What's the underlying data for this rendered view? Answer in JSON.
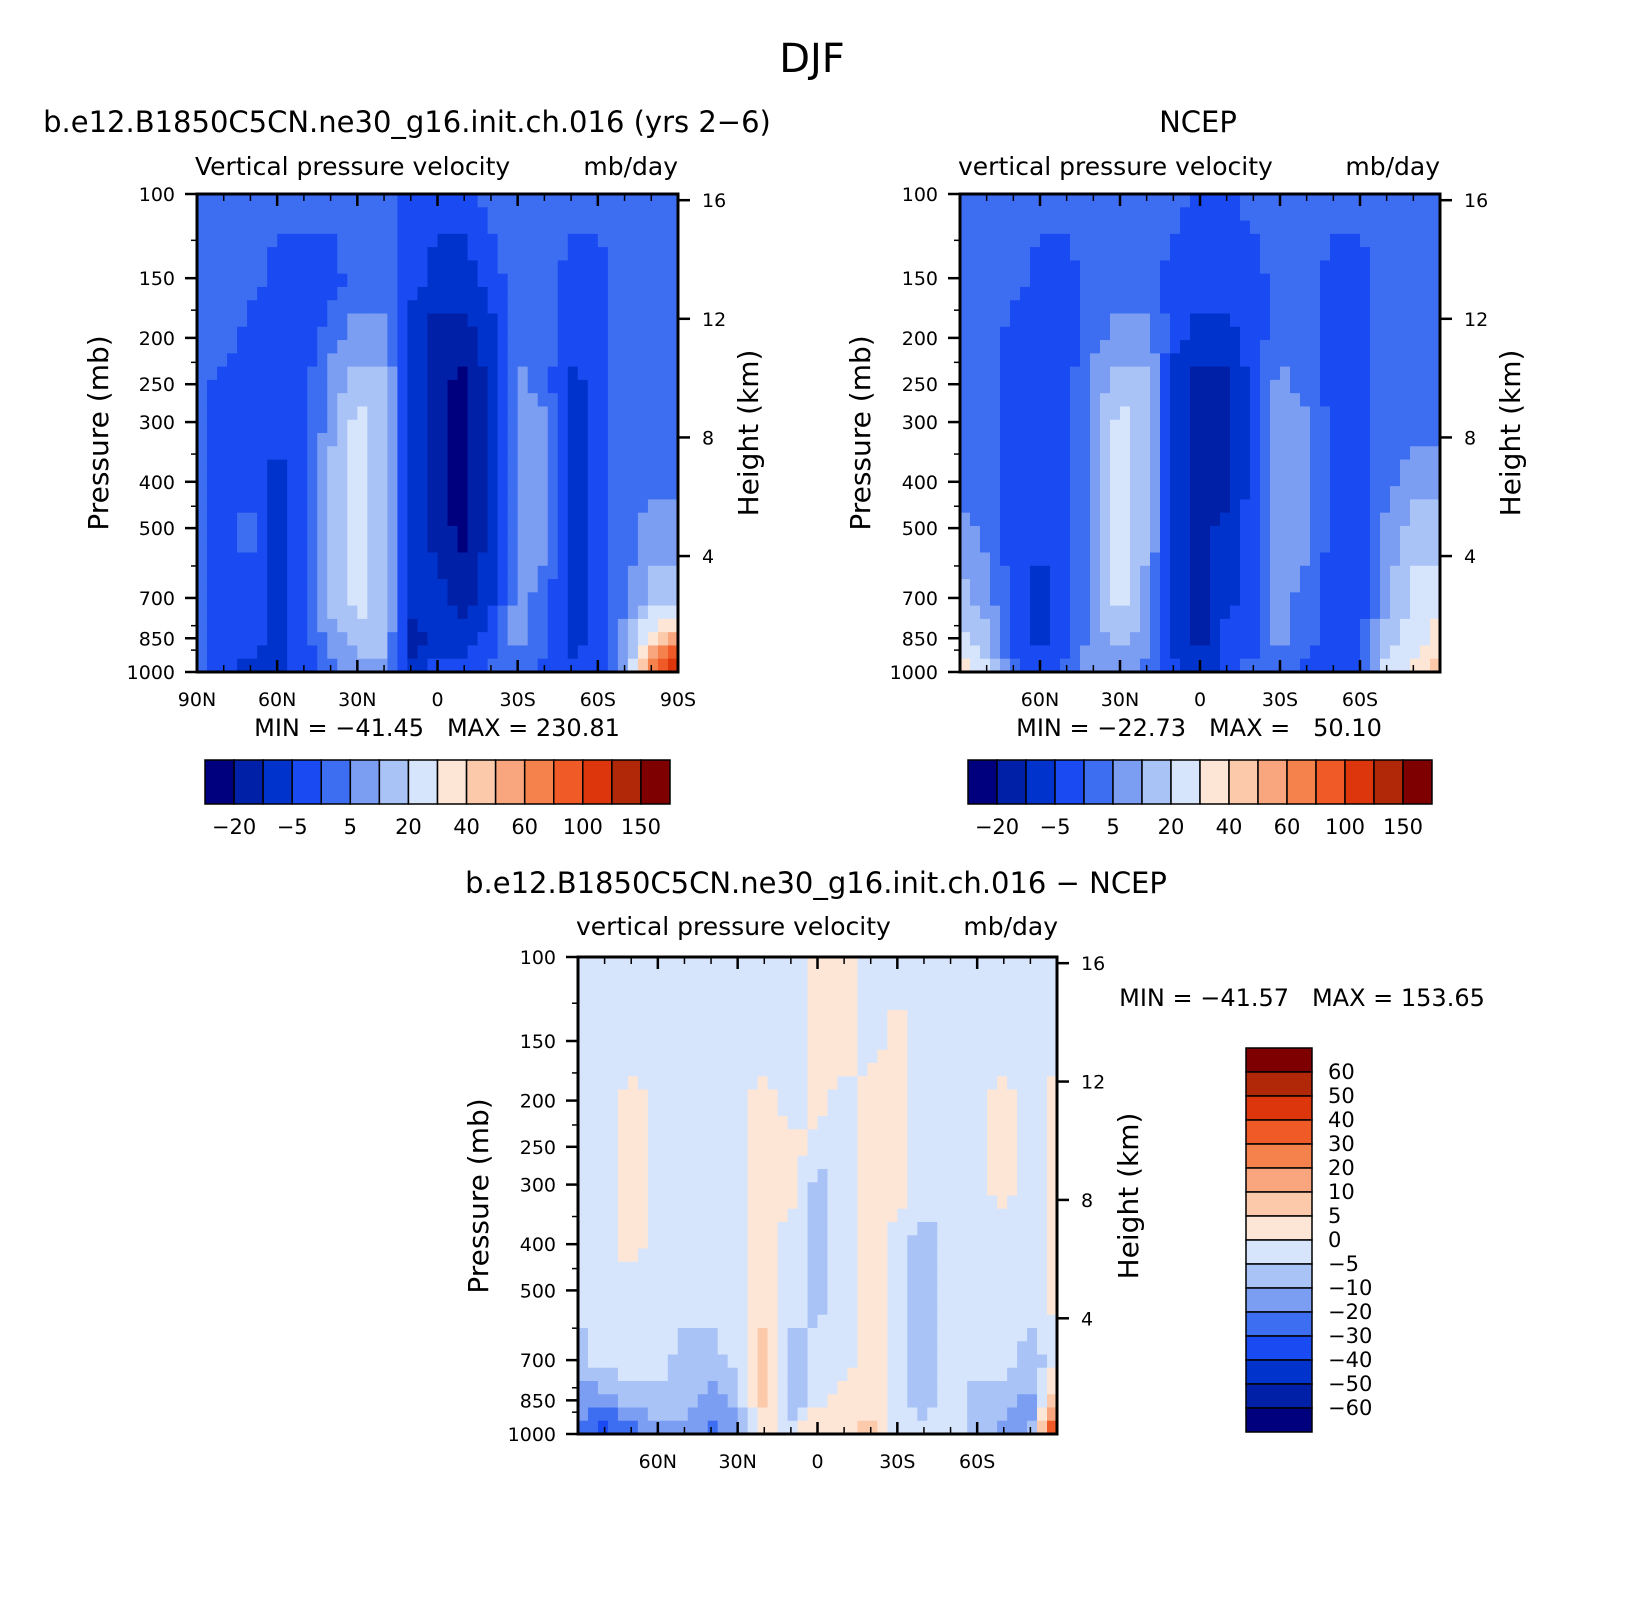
{
  "figure": {
    "title": "DJF"
  },
  "colors": {
    "model_obs_palette": [
      "#00007f",
      "#0020a8",
      "#0033cc",
      "#1a4af2",
      "#3d6ef2",
      "#7b9ef2",
      "#aac3f7",
      "#d6e5fb",
      "#fde6d6",
      "#fcc9aa",
      "#f9a57d",
      "#f5814d",
      "#f05a26",
      "#de360c",
      "#b02808",
      "#7f0000"
    ],
    "diff_palette": [
      "#00007f",
      "#0020a8",
      "#0033cc",
      "#1a4af2",
      "#3d6ef2",
      "#7b9ef2",
      "#aac3f7",
      "#d6e5fb",
      "#fde6d6",
      "#fcc9aa",
      "#f9a57d",
      "#f5814d",
      "#f05a26",
      "#de360c",
      "#b02808",
      "#7f0000"
    ]
  },
  "chart_data": [
    {
      "type": "heatmap",
      "id": "model",
      "title": "b.e12.B1850C5CN.ne30_g16.init.ch.016 (yrs 2−6)",
      "subtitle_left": "Vertical pressure velocity",
      "subtitle_right": "mb/day",
      "ylabel": "Pressure (mb)",
      "ylabel_right": "Height (km)",
      "y_ticks": [
        "100",
        "150",
        "200",
        "250",
        "300",
        "400",
        "500",
        "700",
        "850",
        "1000"
      ],
      "y_tick_values": [
        100,
        150,
        200,
        250,
        300,
        400,
        500,
        700,
        850,
        1000
      ],
      "y_right_ticks": [
        "16",
        "12",
        "8",
        "4"
      ],
      "x_ticks": [
        "90N",
        "60N",
        "30N",
        "0",
        "30S",
        "60S",
        "90S"
      ],
      "x_tick_values": [
        90,
        60,
        30,
        0,
        -30,
        -60,
        -90
      ],
      "xlim": [
        90,
        -90
      ],
      "ylim": [
        1000,
        100
      ],
      "y_scale": "log",
      "stats": "MIN = −41.45   MAX = 230.81",
      "min": -41.45,
      "max": 230.81,
      "colorbar_labels": [
        "−20",
        "−5",
        "5",
        "20",
        "40",
        "60",
        "100",
        "150"
      ],
      "field_columns": [
        {
          "lat": 90,
          "levels": [
            4,
            4,
            4,
            4,
            4,
            4,
            4,
            4,
            4,
            4
          ]
        },
        {
          "lat": 80,
          "levels": [
            4,
            4,
            4,
            3,
            3,
            3,
            3,
            3,
            3,
            3
          ]
        },
        {
          "lat": 70,
          "levels": [
            4,
            4,
            3,
            3,
            3,
            3,
            4,
            3,
            3,
            2
          ]
        },
        {
          "lat": 60,
          "levels": [
            4,
            3,
            3,
            3,
            3,
            2,
            2,
            2,
            2,
            2
          ]
        },
        {
          "lat": 50,
          "levels": [
            4,
            3,
            3,
            3,
            3,
            3,
            3,
            3,
            3,
            3
          ]
        },
        {
          "lat": 40,
          "levels": [
            4,
            3,
            4,
            5,
            5,
            6,
            6,
            6,
            5,
            4
          ]
        },
        {
          "lat": 30,
          "levels": [
            4,
            4,
            5,
            6,
            7,
            7,
            7,
            7,
            6,
            5
          ]
        },
        {
          "lat": 20,
          "levels": [
            4,
            4,
            5,
            6,
            6,
            6,
            6,
            6,
            6,
            5
          ]
        },
        {
          "lat": 10,
          "levels": [
            3,
            3,
            2,
            2,
            2,
            2,
            2,
            2,
            1,
            2
          ]
        },
        {
          "lat": 0,
          "levels": [
            3,
            2,
            1,
            1,
            1,
            1,
            1,
            2,
            2,
            3
          ]
        },
        {
          "lat": -10,
          "levels": [
            3,
            2,
            1,
            0,
            0,
            0,
            0,
            1,
            2,
            3
          ]
        },
        {
          "lat": -20,
          "levels": [
            4,
            3,
            2,
            2,
            2,
            2,
            2,
            2,
            3,
            4
          ]
        },
        {
          "lat": -30,
          "levels": [
            4,
            4,
            4,
            5,
            5,
            5,
            5,
            5,
            5,
            4
          ]
        },
        {
          "lat": -40,
          "levels": [
            4,
            4,
            4,
            4,
            5,
            5,
            5,
            4,
            4,
            3
          ]
        },
        {
          "lat": -50,
          "levels": [
            4,
            3,
            3,
            2,
            2,
            2,
            2,
            2,
            2,
            3
          ]
        },
        {
          "lat": -60,
          "levels": [
            4,
            3,
            3,
            3,
            3,
            3,
            3,
            3,
            3,
            3
          ]
        },
        {
          "lat": -70,
          "levels": [
            4,
            4,
            4,
            4,
            4,
            4,
            4,
            4,
            5,
            5
          ]
        },
        {
          "lat": -80,
          "levels": [
            4,
            4,
            4,
            4,
            4,
            4,
            5,
            6,
            8,
            12
          ]
        },
        {
          "lat": -90,
          "levels": [
            4,
            4,
            4,
            4,
            4,
            4,
            5,
            6,
            10,
            15
          ]
        }
      ]
    },
    {
      "type": "heatmap",
      "id": "obs",
      "title": "NCEP",
      "subtitle_left": "vertical pressure velocity",
      "subtitle_right": "mb/day",
      "ylabel": "Pressure (mb)",
      "ylabel_right": "Height (km)",
      "y_ticks": [
        "100",
        "150",
        "200",
        "250",
        "300",
        "400",
        "500",
        "700",
        "850",
        "1000"
      ],
      "y_tick_values": [
        100,
        150,
        200,
        250,
        300,
        400,
        500,
        700,
        850,
        1000
      ],
      "y_right_ticks": [
        "16",
        "12",
        "8",
        "4"
      ],
      "x_ticks": [
        "60N",
        "30N",
        "0",
        "30S",
        "60S"
      ],
      "x_tick_values": [
        60,
        30,
        0,
        -30,
        -60
      ],
      "xlim": [
        90,
        -90
      ],
      "ylim": [
        1000,
        100
      ],
      "y_scale": "log",
      "stats": "MIN = −22.73   MAX =   50.10",
      "min": -22.73,
      "max": 50.1,
      "colorbar_labels": [
        "−20",
        "−5",
        "5",
        "20",
        "40",
        "60",
        "100",
        "150"
      ],
      "field_columns": [
        {
          "lat": 90,
          "levels": [
            4,
            4,
            4,
            4,
            4,
            4,
            5,
            6,
            7,
            8
          ]
        },
        {
          "lat": 80,
          "levels": [
            4,
            4,
            4,
            4,
            4,
            4,
            4,
            5,
            6,
            7
          ]
        },
        {
          "lat": 70,
          "levels": [
            4,
            4,
            3,
            3,
            3,
            3,
            3,
            3,
            3,
            4
          ]
        },
        {
          "lat": 60,
          "levels": [
            4,
            3,
            3,
            3,
            3,
            3,
            3,
            2,
            2,
            3
          ]
        },
        {
          "lat": 50,
          "levels": [
            4,
            3,
            3,
            3,
            3,
            3,
            3,
            3,
            3,
            4
          ]
        },
        {
          "lat": 40,
          "levels": [
            4,
            4,
            4,
            5,
            5,
            5,
            5,
            5,
            5,
            5
          ]
        },
        {
          "lat": 30,
          "levels": [
            4,
            4,
            5,
            6,
            7,
            7,
            7,
            7,
            6,
            5
          ]
        },
        {
          "lat": 20,
          "levels": [
            4,
            4,
            5,
            6,
            6,
            6,
            6,
            5,
            5,
            4
          ]
        },
        {
          "lat": 10,
          "levels": [
            4,
            3,
            3,
            2,
            2,
            2,
            2,
            2,
            2,
            3
          ]
        },
        {
          "lat": 0,
          "levels": [
            3,
            3,
            2,
            1,
            1,
            1,
            1,
            1,
            1,
            2
          ]
        },
        {
          "lat": -10,
          "levels": [
            3,
            3,
            2,
            1,
            1,
            1,
            2,
            2,
            3,
            3
          ]
        },
        {
          "lat": -20,
          "levels": [
            4,
            3,
            3,
            3,
            3,
            3,
            3,
            3,
            3,
            4
          ]
        },
        {
          "lat": -30,
          "levels": [
            4,
            4,
            4,
            5,
            5,
            5,
            5,
            5,
            5,
            4
          ]
        },
        {
          "lat": -40,
          "levels": [
            4,
            4,
            4,
            4,
            5,
            5,
            5,
            4,
            4,
            3
          ]
        },
        {
          "lat": -50,
          "levels": [
            4,
            3,
            3,
            3,
            3,
            3,
            3,
            3,
            3,
            3
          ]
        },
        {
          "lat": -60,
          "levels": [
            4,
            3,
            3,
            3,
            3,
            3,
            3,
            3,
            3,
            3
          ]
        },
        {
          "lat": -70,
          "levels": [
            4,
            4,
            4,
            4,
            4,
            4,
            5,
            5,
            6,
            7
          ]
        },
        {
          "lat": -80,
          "levels": [
            4,
            4,
            4,
            4,
            4,
            5,
            6,
            7,
            7,
            8
          ]
        },
        {
          "lat": -90,
          "levels": [
            4,
            4,
            4,
            4,
            4,
            5,
            6,
            7,
            8,
            9
          ]
        }
      ]
    },
    {
      "type": "heatmap",
      "id": "diff",
      "title": "b.e12.B1850C5CN.ne30_g16.init.ch.016 − NCEP",
      "subtitle_left": "vertical pressure velocity",
      "subtitle_right": "mb/day",
      "ylabel": "Pressure (mb)",
      "ylabel_right": "Height (km)",
      "y_ticks": [
        "100",
        "150",
        "200",
        "250",
        "300",
        "400",
        "500",
        "700",
        "850",
        "1000"
      ],
      "y_tick_values": [
        100,
        150,
        200,
        250,
        300,
        400,
        500,
        700,
        850,
        1000
      ],
      "y_right_ticks": [
        "16",
        "12",
        "8",
        "4"
      ],
      "x_ticks": [
        "60N",
        "30N",
        "0",
        "30S",
        "60S"
      ],
      "x_tick_values": [
        60,
        30,
        0,
        -30,
        -60
      ],
      "xlim": [
        90,
        -90
      ],
      "ylim": [
        1000,
        100
      ],
      "y_scale": "log",
      "stats": "MIN = −41.57   MAX = 153.65",
      "min": -41.57,
      "max": 153.65,
      "colorbar_labels": [
        "60",
        "50",
        "40",
        "30",
        "20",
        "10",
        "5",
        "0",
        "−5",
        "−10",
        "−20",
        "−30",
        "−40",
        "−50",
        "−60"
      ],
      "field_columns": [
        {
          "lat": 90,
          "levels": [
            7,
            7,
            7,
            7,
            7,
            7,
            7,
            6,
            5,
            4
          ]
        },
        {
          "lat": 80,
          "levels": [
            7,
            7,
            7,
            7,
            7,
            7,
            7,
            7,
            5,
            3
          ]
        },
        {
          "lat": 70,
          "levels": [
            7,
            7,
            8,
            8,
            8,
            8,
            7,
            7,
            6,
            4
          ]
        },
        {
          "lat": 60,
          "levels": [
            7,
            7,
            7,
            7,
            7,
            7,
            7,
            7,
            6,
            5
          ]
        },
        {
          "lat": 50,
          "levels": [
            7,
            7,
            7,
            7,
            7,
            7,
            7,
            6,
            6,
            5
          ]
        },
        {
          "lat": 40,
          "levels": [
            7,
            7,
            7,
            7,
            7,
            7,
            7,
            6,
            5,
            4
          ]
        },
        {
          "lat": 30,
          "levels": [
            7,
            7,
            7,
            7,
            7,
            7,
            7,
            7,
            6,
            5
          ]
        },
        {
          "lat": 20,
          "levels": [
            7,
            7,
            8,
            8,
            8,
            8,
            8,
            9,
            9,
            8
          ]
        },
        {
          "lat": 10,
          "levels": [
            7,
            7,
            7,
            8,
            8,
            7,
            7,
            6,
            6,
            7
          ]
        },
        {
          "lat": 0,
          "levels": [
            8,
            8,
            8,
            7,
            6,
            6,
            6,
            7,
            7,
            9
          ]
        },
        {
          "lat": -10,
          "levels": [
            8,
            8,
            7,
            7,
            7,
            7,
            7,
            7,
            8,
            8
          ]
        },
        {
          "lat": -20,
          "levels": [
            7,
            7,
            8,
            8,
            8,
            8,
            8,
            8,
            8,
            9
          ]
        },
        {
          "lat": -30,
          "levels": [
            7,
            8,
            8,
            8,
            8,
            7,
            7,
            7,
            7,
            7
          ]
        },
        {
          "lat": -40,
          "levels": [
            7,
            7,
            7,
            7,
            7,
            6,
            6,
            6,
            6,
            7
          ]
        },
        {
          "lat": -50,
          "levels": [
            7,
            7,
            7,
            7,
            7,
            7,
            7,
            7,
            7,
            7
          ]
        },
        {
          "lat": -60,
          "levels": [
            7,
            7,
            7,
            7,
            7,
            7,
            7,
            7,
            6,
            6
          ]
        },
        {
          "lat": -70,
          "levels": [
            7,
            7,
            8,
            8,
            8,
            7,
            7,
            7,
            6,
            5
          ]
        },
        {
          "lat": -80,
          "levels": [
            7,
            7,
            7,
            7,
            7,
            7,
            7,
            6,
            5,
            5
          ]
        },
        {
          "lat": -90,
          "levels": [
            7,
            7,
            8,
            8,
            8,
            8,
            8,
            7,
            10,
            14
          ]
        }
      ]
    }
  ]
}
